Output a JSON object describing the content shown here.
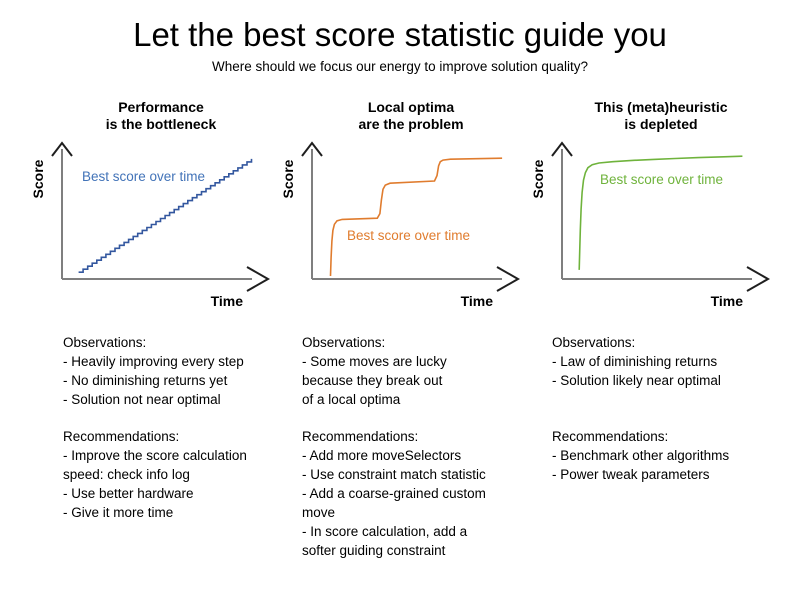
{
  "page": {
    "title": "Let the best score statistic guide you",
    "subtitle": "Where should we focus our energy to improve solution quality?"
  },
  "colors": {
    "axis_line": "#7f7f7f",
    "axis_arrow": "#1f1f1f",
    "blue_line": "#33579f",
    "blue_label": "#4273b8",
    "orange_line": "#e07c2e",
    "green_line": "#6fb33c"
  },
  "panels": [
    {
      "title_line1": "Performance",
      "title_line2": "is the bottleneck"
    },
    {
      "title_line1": "Local optima",
      "title_line2": "are the problem"
    },
    {
      "title_line1": "This (meta)heuristic",
      "title_line2": "is depleted"
    }
  ],
  "chart_data": [
    {
      "type": "line",
      "title": "Performance is the bottleneck",
      "xlabel": "Time",
      "ylabel": "Score",
      "xlim": [
        0,
        1
      ],
      "ylim": [
        0,
        1
      ],
      "grid": false,
      "ticks": "none (conceptual sketch axes with arrowheads)",
      "series": [
        {
          "name": "Best score over time",
          "color": "#33579f",
          "label_color": "#4273b8",
          "style": "staircase",
          "from": [
            0.085,
            0.045
          ],
          "to": [
            0.972,
            0.79
          ],
          "steps": 38,
          "description": "steadily rising staircase: small constant improvements every step, no flattening"
        }
      ]
    },
    {
      "type": "line",
      "title": "Local optima are the problem",
      "xlabel": "Time",
      "ylabel": "Score",
      "xlim": [
        0,
        1
      ],
      "ylim": [
        0,
        1
      ],
      "grid": false,
      "ticks": "none (conceptual sketch axes with arrowheads)",
      "series": [
        {
          "name": "Best score over time",
          "color": "#e07c2e",
          "label_color": "#e07c2e",
          "style": "points",
          "points": [
            [
              0.095,
              0.02
            ],
            [
              0.098,
              0.14
            ],
            [
              0.102,
              0.25
            ],
            [
              0.107,
              0.32
            ],
            [
              0.115,
              0.36
            ],
            [
              0.128,
              0.383
            ],
            [
              0.155,
              0.392
            ],
            [
              0.335,
              0.4
            ],
            [
              0.348,
              0.43
            ],
            [
              0.356,
              0.52
            ],
            [
              0.364,
              0.59
            ],
            [
              0.376,
              0.618
            ],
            [
              0.4,
              0.63
            ],
            [
              0.628,
              0.645
            ],
            [
              0.641,
              0.68
            ],
            [
              0.649,
              0.745
            ],
            [
              0.658,
              0.772
            ],
            [
              0.672,
              0.782
            ],
            [
              0.71,
              0.788
            ],
            [
              0.975,
              0.795
            ]
          ],
          "description": "three steep jumps separated by long flat plateaus (escaping local optima)"
        }
      ]
    },
    {
      "type": "line",
      "title": "This (meta)heuristic is depleted",
      "xlabel": "Time",
      "ylabel": "Score",
      "xlim": [
        0,
        1
      ],
      "ylim": [
        0,
        1
      ],
      "grid": false,
      "ticks": "none (conceptual sketch axes with arrowheads)",
      "series": [
        {
          "name": "Best score over time",
          "color": "#6fb33c",
          "label_color": "#6fb33c",
          "style": "points",
          "points": [
            [
              0.088,
              0.06
            ],
            [
              0.091,
              0.18
            ],
            [
              0.094,
              0.32
            ],
            [
              0.098,
              0.46
            ],
            [
              0.103,
              0.57
            ],
            [
              0.11,
              0.65
            ],
            [
              0.12,
              0.7
            ],
            [
              0.133,
              0.732
            ],
            [
              0.155,
              0.752
            ],
            [
              0.19,
              0.763
            ],
            [
              0.26,
              0.772
            ],
            [
              0.36,
              0.78
            ],
            [
              0.47,
              0.787
            ],
            [
              0.58,
              0.793
            ],
            [
              0.7,
              0.799
            ],
            [
              0.83,
              0.804
            ],
            [
              0.925,
              0.808
            ]
          ],
          "description": "very steep initial climb then nearly flat: law of diminishing returns"
        }
      ]
    }
  ],
  "columns": [
    {
      "observations_heading": "Observations:",
      "observations": [
        "- Heavily improving every step",
        "- No diminishing returns yet",
        "- Solution not near optimal"
      ],
      "recommendations_heading": "Recommendations:",
      "recommendations": [
        "- Improve the score calculation\nspeed: check info log",
        "- Use better hardware",
        "- Give it more time"
      ]
    },
    {
      "observations_heading": "Observations:",
      "observations": [
        "- Some moves are lucky\nbecause they break out\nof a local optima"
      ],
      "recommendations_heading": "Recommendations:",
      "recommendations": [
        "- Add more moveSelectors",
        "- Use constraint match statistic",
        "- Add a coarse-grained custom\nmove",
        "- In score calculation, add a\nsofter guiding constraint"
      ]
    },
    {
      "observations_heading": "Observations:",
      "observations": [
        "- Law of diminishing returns",
        "- Solution likely near optimal"
      ],
      "recommendations_heading": "Recommendations:",
      "recommendations": [
        "- Benchmark other algorithms",
        "- Power tweak parameters"
      ]
    }
  ]
}
